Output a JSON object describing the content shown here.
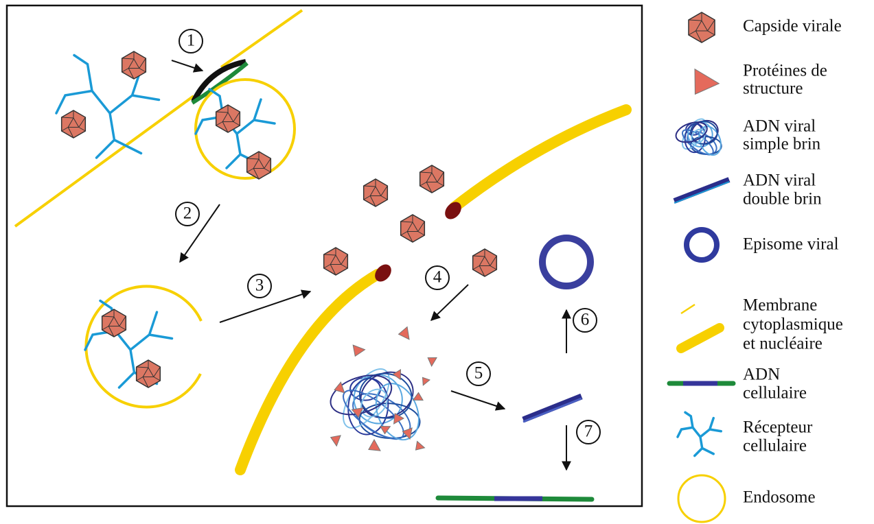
{
  "steps": [
    "1",
    "2",
    "3",
    "4",
    "5",
    "6",
    "7"
  ],
  "legend": [
    {
      "lines": [
        "Capside virale"
      ]
    },
    {
      "lines": [
        "Protéines de",
        "structure"
      ]
    },
    {
      "lines": [
        "ADN viral",
        "simple brin"
      ]
    },
    {
      "lines": [
        "ADN viral",
        "double brin"
      ]
    },
    {
      "lines": [
        "Episome viral"
      ]
    },
    {
      "lines": [
        "Membrane",
        "cytoplasmique",
        "et nucléaire"
      ]
    },
    {
      "lines": [
        "ADN",
        "cellulaire"
      ]
    },
    {
      "lines": [
        "Récepteur",
        "cellulaire"
      ]
    },
    {
      "lines": [
        "Endosome"
      ]
    }
  ]
}
